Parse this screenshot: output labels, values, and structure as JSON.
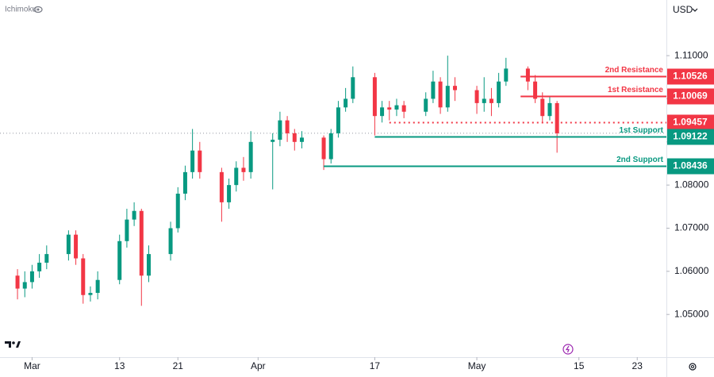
{
  "chart_data": {
    "type": "candlestick",
    "indicator": "Ichimoku",
    "currency": "USD",
    "up_color": "#089981",
    "down_color": "#f23645",
    "x": [
      -2,
      -1,
      0,
      1,
      2,
      5,
      6,
      7,
      8,
      9,
      12,
      13,
      14,
      15,
      16,
      19,
      20,
      21,
      22,
      23,
      26,
      27,
      28,
      29,
      30,
      33,
      34,
      35,
      36,
      37,
      40,
      41,
      42,
      43,
      44,
      47,
      48,
      49,
      50,
      51,
      54,
      55,
      56,
      57,
      58,
      61,
      62,
      63,
      64,
      65,
      68,
      69,
      70,
      71,
      72
    ],
    "open": [
      1.059,
      1.056,
      1.0575,
      1.06,
      1.062,
      1.064,
      1.0685,
      1.063,
      1.0545,
      1.055,
      1.058,
      1.067,
      1.072,
      1.074,
      1.059,
      1.064,
      1.07,
      1.078,
      1.083,
      1.088,
      1.083,
      1.076,
      1.08,
      1.084,
      1.083,
      1.09,
      1.0905,
      1.095,
      1.092,
      1.09,
      1.091,
      1.086,
      1.092,
      1.098,
      1.1,
      1.105,
      1.096,
      1.098,
      1.0975,
      1.0985,
      1.097,
      1.1,
      1.104,
      1.098,
      1.103,
      1.102,
      1.099,
      1.1,
      1.099,
      1.104,
      1.107,
      1.104,
      1.1,
      1.096,
      1.099
    ],
    "high": [
      1.0605,
      1.06,
      1.0615,
      1.064,
      1.066,
      1.0695,
      1.0695,
      1.064,
      1.0565,
      1.06,
      1.0685,
      1.0745,
      1.076,
      1.0745,
      1.066,
      1.0715,
      1.0795,
      1.0845,
      1.093,
      1.09,
      1.084,
      1.0815,
      1.0855,
      1.0865,
      1.0925,
      1.092,
      1.097,
      1.096,
      1.093,
      1.0925,
      1.0915,
      1.093,
      1.0995,
      1.1025,
      1.1075,
      1.106,
      1.0995,
      1.0995,
      1.1,
      1.0995,
      1.1015,
      1.1065,
      1.105,
      1.11,
      1.105,
      1.103,
      1.105,
      1.1025,
      1.106,
      1.1095,
      1.1075,
      1.1055,
      1.1015,
      1.1005,
      1.0995
    ],
    "low": [
      1.0535,
      1.054,
      1.056,
      1.0585,
      1.0605,
      1.0625,
      1.0615,
      1.0525,
      1.053,
      1.0535,
      1.057,
      1.0655,
      1.0705,
      1.052,
      1.0575,
      1.0625,
      1.069,
      1.0765,
      1.0815,
      1.0815,
      1.0715,
      1.0745,
      1.0785,
      1.081,
      1.0815,
      1.079,
      1.089,
      1.09,
      1.088,
      1.0885,
      1.0835,
      1.085,
      1.091,
      1.097,
      1.099,
      1.0915,
      1.0945,
      1.095,
      1.096,
      1.0955,
      1.096,
      1.099,
      1.0965,
      1.097,
      1.0995,
      1.0965,
      1.097,
      1.096,
      1.098,
      1.103,
      1.102,
      1.099,
      1.0945,
      1.095,
      1.0875
    ],
    "close": [
      1.056,
      1.0575,
      1.06,
      1.062,
      1.064,
      1.0685,
      1.063,
      1.0545,
      1.055,
      1.058,
      1.067,
      1.072,
      1.074,
      1.059,
      1.064,
      1.07,
      1.078,
      1.083,
      1.088,
      1.083,
      1.076,
      1.08,
      1.084,
      1.083,
      1.09,
      1.0905,
      1.095,
      1.092,
      1.09,
      1.091,
      1.086,
      1.092,
      1.098,
      1.1,
      1.105,
      1.096,
      1.098,
      1.0975,
      1.0985,
      1.097,
      1.1,
      1.104,
      1.098,
      1.103,
      1.102,
      1.099,
      1.1,
      1.099,
      1.104,
      1.107,
      1.104,
      1.1,
      1.096,
      1.099,
      1.092
    ],
    "xlim": [
      -4.4,
      87
    ],
    "ylim": [
      1.0401,
      1.1229
    ],
    "xticks": [
      {
        "value": 0,
        "label": "Mar"
      },
      {
        "value": 12,
        "label": "13"
      },
      {
        "value": 20,
        "label": "21"
      },
      {
        "value": 31,
        "label": "Apr"
      },
      {
        "value": 47,
        "label": "17"
      },
      {
        "value": 61,
        "label": "May"
      },
      {
        "value": 75,
        "label": "15"
      },
      {
        "value": 83,
        "label": "23"
      }
    ],
    "yticks": [
      {
        "value": 1.05,
        "label": "1.05000"
      },
      {
        "value": 1.06,
        "label": "1.06000"
      },
      {
        "value": 1.07,
        "label": "1.07000"
      },
      {
        "value": 1.08,
        "label": "1.08000"
      },
      {
        "value": 1.09,
        "label": "1.09000"
      },
      {
        "value": 1.1,
        "label": "1.10000"
      },
      {
        "value": 1.11,
        "label": "1.11000"
      }
    ],
    "grid": false,
    "levels": [
      {
        "name": "2nd Resistance",
        "value": 1.10526,
        "color": "#f23645",
        "style": "solid",
        "x_start": 67
      },
      {
        "name": "1st Resistance",
        "value": 1.10069,
        "color": "#f23645",
        "style": "solid",
        "x_start": 67
      },
      {
        "value": 1.09457,
        "color": "#f23645",
        "style": "dotted",
        "x_start": 49
      },
      {
        "name": "1st Support",
        "value": 1.09122,
        "color": "#089981",
        "style": "solid",
        "x_start": 47
      },
      {
        "name": "2nd Support",
        "value": 1.08436,
        "color": "#089981",
        "style": "solid",
        "x_start": 40
      }
    ]
  }
}
